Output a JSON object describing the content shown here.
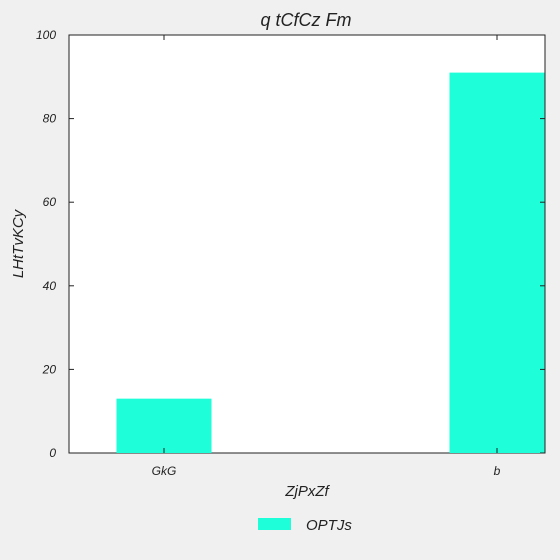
{
  "chart_data": {
    "type": "bar",
    "title": "q  tCfCz Fm",
    "xlabel": "ZjPxZf",
    "ylabel": "LHtTvKCy",
    "categories": [
      "GkG",
      "b"
    ],
    "series": [
      {
        "name": "OPTJs",
        "values": [
          13,
          91
        ],
        "color": "#1effd9"
      }
    ],
    "ylim": [
      0,
      100
    ],
    "yticks": [
      0,
      20,
      40,
      60,
      80,
      100
    ],
    "grid": false,
    "legend_position": "bottom-center"
  }
}
